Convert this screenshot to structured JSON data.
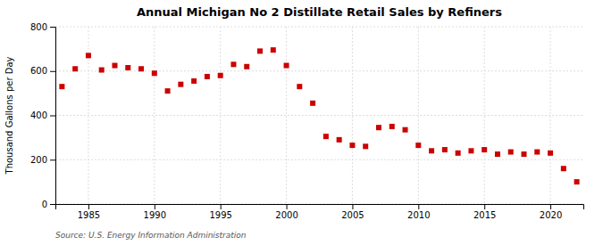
{
  "chart_data": {
    "type": "scatter",
    "title": "Annual Michigan No 2 Distillate Retail Sales by Refiners",
    "ylabel": "Thousand Gallons per Day",
    "annotations": [
      "Source: U.S. Energy Information Administration"
    ],
    "color": "#cc0000",
    "marker": "square",
    "grid": true,
    "xlim": [
      1982.5,
      2022.5
    ],
    "xticks": [
      1985,
      1990,
      1995,
      2000,
      2005,
      2010,
      2015,
      2020
    ],
    "ylim": [
      0,
      800
    ],
    "yticks": [
      0,
      200,
      400,
      600,
      800
    ],
    "x": [
      1983,
      1984,
      1985,
      1986,
      1987,
      1988,
      1989,
      1990,
      1991,
      1992,
      1993,
      1994,
      1995,
      1996,
      1997,
      1998,
      1999,
      2000,
      2001,
      2002,
      2003,
      2004,
      2005,
      2006,
      2007,
      2008,
      2009,
      2010,
      2011,
      2012,
      2013,
      2014,
      2015,
      2016,
      2017,
      2018,
      2019,
      2020,
      2021,
      2022
    ],
    "values": [
      530,
      610,
      670,
      605,
      625,
      615,
      610,
      590,
      510,
      540,
      555,
      575,
      580,
      630,
      620,
      690,
      695,
      625,
      530,
      455,
      305,
      290,
      265,
      260,
      345,
      350,
      335,
      265,
      240,
      245,
      230,
      240,
      245,
      225,
      235,
      225,
      235,
      230,
      160,
      100
    ]
  }
}
